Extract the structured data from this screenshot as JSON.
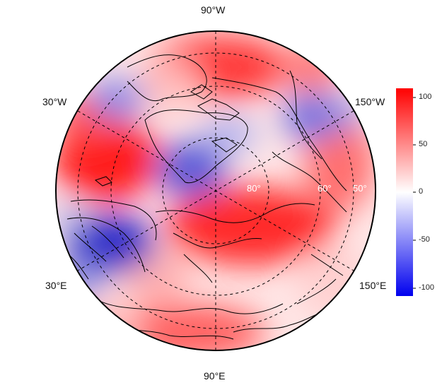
{
  "map": {
    "projection": "north-polar-stereographic",
    "longitude_labels": {
      "top": "90°W",
      "upper_left": "30°W",
      "upper_right": "150°W",
      "lower_left": "30°E",
      "lower_right": "150°E",
      "bottom": "90°E"
    },
    "latitude_labels": [
      "80°",
      "60°",
      "50°"
    ],
    "colorbar": {
      "ticks": [
        "100",
        "50",
        "0",
        "-50",
        "-100"
      ],
      "range": [
        -110,
        110
      ],
      "colors": {
        "high": "#ff0000",
        "mid": "#ffffff",
        "low": "#0000ee"
      }
    }
  }
}
